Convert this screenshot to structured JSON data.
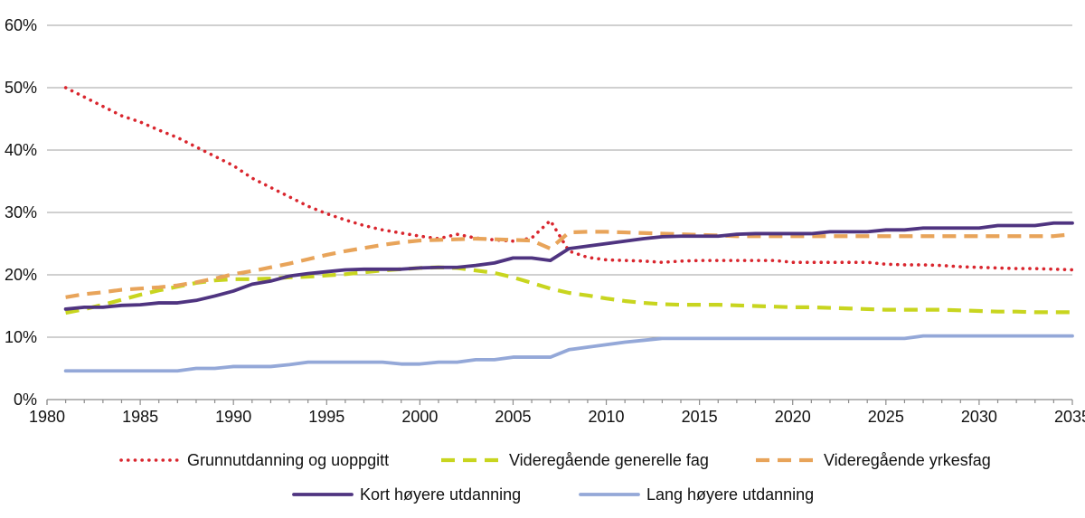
{
  "chart_data": {
    "type": "line",
    "title": "",
    "xlabel": "",
    "ylabel": "",
    "xlim": [
      1980,
      2035
    ],
    "ylim": [
      0,
      60
    ],
    "y_ticks": [
      0,
      10,
      20,
      30,
      40,
      50,
      60
    ],
    "y_tick_labels": [
      "0%",
      "10%",
      "20%",
      "30%",
      "40%",
      "50%",
      "60%"
    ],
    "x_ticks": [
      1980,
      1985,
      1990,
      1995,
      2000,
      2005,
      2010,
      2015,
      2020,
      2025,
      2030,
      2035
    ],
    "x_tick_labels": [
      "1980",
      "1985",
      "1990",
      "1995",
      "2000",
      "2005",
      "2010",
      "2015",
      "2020",
      "2025",
      "2030",
      "2035"
    ],
    "grid": true,
    "legend_position": "bottom",
    "series": [
      {
        "name": "Grunnutdanning og uoppgitt",
        "color": "#d9262e",
        "style": "dotted",
        "points": [
          [
            1981,
            50
          ],
          [
            1982,
            48.5
          ],
          [
            1983,
            47
          ],
          [
            1984,
            45.5
          ],
          [
            1985,
            44.5
          ],
          [
            1986,
            43.2
          ],
          [
            1987,
            42
          ],
          [
            1988,
            40.5
          ],
          [
            1989,
            39
          ],
          [
            1990,
            37.5
          ],
          [
            1991,
            35.5
          ],
          [
            1992,
            34
          ],
          [
            1993,
            32.5
          ],
          [
            1994,
            31
          ],
          [
            1995,
            29.8
          ],
          [
            1996,
            28.8
          ],
          [
            1997,
            27.9
          ],
          [
            1998,
            27.2
          ],
          [
            1999,
            26.7
          ],
          [
            2000,
            26.2
          ],
          [
            2001,
            25.8
          ],
          [
            2002,
            26.5
          ],
          [
            2003,
            25.9
          ],
          [
            2004,
            25.6
          ],
          [
            2005,
            25.4
          ],
          [
            2006,
            25.9
          ],
          [
            2007,
            28.7
          ],
          [
            2008,
            23.8
          ],
          [
            2009,
            22.8
          ],
          [
            2010,
            22.4
          ],
          [
            2011,
            22.3
          ],
          [
            2012,
            22.2
          ],
          [
            2013,
            22
          ],
          [
            2014,
            22.2
          ],
          [
            2015,
            22.3
          ],
          [
            2016,
            22.3
          ],
          [
            2017,
            22.3
          ],
          [
            2018,
            22.3
          ],
          [
            2019,
            22.3
          ],
          [
            2020,
            22
          ],
          [
            2021,
            22
          ],
          [
            2022,
            22
          ],
          [
            2023,
            22
          ],
          [
            2024,
            22
          ],
          [
            2025,
            21.7
          ],
          [
            2026,
            21.6
          ],
          [
            2027,
            21.6
          ],
          [
            2028,
            21.5
          ],
          [
            2029,
            21.3
          ],
          [
            2030,
            21.2
          ],
          [
            2031,
            21.1
          ],
          [
            2032,
            21
          ],
          [
            2033,
            21
          ],
          [
            2034,
            20.9
          ],
          [
            2035,
            20.8
          ]
        ]
      },
      {
        "name": "Videregående generelle fag",
        "color": "#c8d51f",
        "style": "dashed",
        "points": [
          [
            1981,
            13.9
          ],
          [
            1982,
            14.5
          ],
          [
            1983,
            15.2
          ],
          [
            1984,
            16
          ],
          [
            1985,
            16.8
          ],
          [
            1986,
            17.5
          ],
          [
            1987,
            18.1
          ],
          [
            1988,
            18.7
          ],
          [
            1989,
            19.1
          ],
          [
            1990,
            19.3
          ],
          [
            1991,
            19.3
          ],
          [
            1992,
            19.4
          ],
          [
            1993,
            19.6
          ],
          [
            1994,
            19.7
          ],
          [
            1995,
            19.9
          ],
          [
            1996,
            20.1
          ],
          [
            1997,
            20.4
          ],
          [
            1998,
            20.7
          ],
          [
            1999,
            20.9
          ],
          [
            2000,
            21.1
          ],
          [
            2001,
            21.2
          ],
          [
            2002,
            21.1
          ],
          [
            2003,
            20.7
          ],
          [
            2004,
            20.3
          ],
          [
            2005,
            19.6
          ],
          [
            2006,
            18.7
          ],
          [
            2007,
            17.8
          ],
          [
            2008,
            17.1
          ],
          [
            2009,
            16.7
          ],
          [
            2010,
            16.2
          ],
          [
            2011,
            15.8
          ],
          [
            2012,
            15.5
          ],
          [
            2013,
            15.3
          ],
          [
            2014,
            15.2
          ],
          [
            2015,
            15.2
          ],
          [
            2016,
            15.2
          ],
          [
            2017,
            15.1
          ],
          [
            2018,
            15
          ],
          [
            2019,
            14.9
          ],
          [
            2020,
            14.8
          ],
          [
            2021,
            14.8
          ],
          [
            2022,
            14.7
          ],
          [
            2023,
            14.6
          ],
          [
            2024,
            14.5
          ],
          [
            2025,
            14.4
          ],
          [
            2026,
            14.4
          ],
          [
            2027,
            14.4
          ],
          [
            2028,
            14.4
          ],
          [
            2029,
            14.3
          ],
          [
            2030,
            14.2
          ],
          [
            2031,
            14.1
          ],
          [
            2032,
            14.1
          ],
          [
            2033,
            14
          ],
          [
            2034,
            14
          ],
          [
            2035,
            14
          ]
        ]
      },
      {
        "name": "Videregående yrkesfag",
        "color": "#e8a45a",
        "style": "dashed",
        "points": [
          [
            1981,
            16.4
          ],
          [
            1982,
            16.9
          ],
          [
            1983,
            17.2
          ],
          [
            1984,
            17.6
          ],
          [
            1985,
            17.8
          ],
          [
            1986,
            18
          ],
          [
            1987,
            18.3
          ],
          [
            1988,
            18.8
          ],
          [
            1989,
            19.4
          ],
          [
            1990,
            20.1
          ],
          [
            1991,
            20.6
          ],
          [
            1992,
            21.2
          ],
          [
            1993,
            21.8
          ],
          [
            1994,
            22.5
          ],
          [
            1995,
            23.2
          ],
          [
            1996,
            23.8
          ],
          [
            1997,
            24.3
          ],
          [
            1998,
            24.8
          ],
          [
            1999,
            25.2
          ],
          [
            2000,
            25.5
          ],
          [
            2001,
            25.6
          ],
          [
            2002,
            25.7
          ],
          [
            2003,
            25.8
          ],
          [
            2004,
            25.7
          ],
          [
            2005,
            25.6
          ],
          [
            2006,
            25.5
          ],
          [
            2007,
            24.2
          ],
          [
            2008,
            26.8
          ],
          [
            2009,
            26.9
          ],
          [
            2010,
            26.9
          ],
          [
            2011,
            26.8
          ],
          [
            2012,
            26.7
          ],
          [
            2013,
            26.6
          ],
          [
            2014,
            26.5
          ],
          [
            2015,
            26.4
          ],
          [
            2016,
            26.3
          ],
          [
            2017,
            26.2
          ],
          [
            2018,
            26.2
          ],
          [
            2019,
            26.2
          ],
          [
            2020,
            26.2
          ],
          [
            2021,
            26.2
          ],
          [
            2022,
            26.2
          ],
          [
            2023,
            26.2
          ],
          [
            2024,
            26.2
          ],
          [
            2025,
            26.2
          ],
          [
            2026,
            26.2
          ],
          [
            2027,
            26.2
          ],
          [
            2028,
            26.2
          ],
          [
            2029,
            26.2
          ],
          [
            2030,
            26.2
          ],
          [
            2031,
            26.2
          ],
          [
            2032,
            26.2
          ],
          [
            2033,
            26.2
          ],
          [
            2034,
            26.2
          ],
          [
            2035,
            26.5
          ]
        ]
      },
      {
        "name": "Kort høyere utdanning",
        "color": "#4f3480",
        "style": "solid",
        "points": [
          [
            1981,
            14.5
          ],
          [
            1982,
            14.8
          ],
          [
            1983,
            14.8
          ],
          [
            1984,
            15.1
          ],
          [
            1985,
            15.2
          ],
          [
            1986,
            15.5
          ],
          [
            1987,
            15.5
          ],
          [
            1988,
            15.9
          ],
          [
            1989,
            16.6
          ],
          [
            1990,
            17.4
          ],
          [
            1991,
            18.5
          ],
          [
            1992,
            19
          ],
          [
            1993,
            19.8
          ],
          [
            1994,
            20.2
          ],
          [
            1995,
            20.5
          ],
          [
            1996,
            20.8
          ],
          [
            1997,
            20.9
          ],
          [
            1998,
            20.9
          ],
          [
            1999,
            20.9
          ],
          [
            2000,
            21.1
          ],
          [
            2001,
            21.2
          ],
          [
            2002,
            21.2
          ],
          [
            2003,
            21.5
          ],
          [
            2004,
            21.9
          ],
          [
            2005,
            22.7
          ],
          [
            2006,
            22.7
          ],
          [
            2007,
            22.3
          ],
          [
            2008,
            24.2
          ],
          [
            2009,
            24.6
          ],
          [
            2010,
            25
          ],
          [
            2011,
            25.4
          ],
          [
            2012,
            25.8
          ],
          [
            2013,
            26.1
          ],
          [
            2014,
            26.2
          ],
          [
            2015,
            26.2
          ],
          [
            2016,
            26.2
          ],
          [
            2017,
            26.5
          ],
          [
            2018,
            26.6
          ],
          [
            2019,
            26.6
          ],
          [
            2020,
            26.6
          ],
          [
            2021,
            26.6
          ],
          [
            2022,
            26.9
          ],
          [
            2023,
            26.9
          ],
          [
            2024,
            26.9
          ],
          [
            2025,
            27.2
          ],
          [
            2026,
            27.2
          ],
          [
            2027,
            27.5
          ],
          [
            2028,
            27.5
          ],
          [
            2029,
            27.5
          ],
          [
            2030,
            27.5
          ],
          [
            2031,
            27.9
          ],
          [
            2032,
            27.9
          ],
          [
            2033,
            27.9
          ],
          [
            2034,
            28.3
          ],
          [
            2035,
            28.3
          ]
        ]
      },
      {
        "name": "Lang høyere utdanning",
        "color": "#94a8d8",
        "style": "solid",
        "points": [
          [
            1981,
            4.6
          ],
          [
            1982,
            4.6
          ],
          [
            1983,
            4.6
          ],
          [
            1984,
            4.6
          ],
          [
            1985,
            4.6
          ],
          [
            1986,
            4.6
          ],
          [
            1987,
            4.6
          ],
          [
            1988,
            5
          ],
          [
            1989,
            5
          ],
          [
            1990,
            5.3
          ],
          [
            1991,
            5.3
          ],
          [
            1992,
            5.3
          ],
          [
            1993,
            5.6
          ],
          [
            1994,
            6
          ],
          [
            1995,
            6
          ],
          [
            1996,
            6
          ],
          [
            1997,
            6
          ],
          [
            1998,
            6
          ],
          [
            1999,
            5.7
          ],
          [
            2000,
            5.7
          ],
          [
            2001,
            6
          ],
          [
            2002,
            6
          ],
          [
            2003,
            6.4
          ],
          [
            2004,
            6.4
          ],
          [
            2005,
            6.8
          ],
          [
            2006,
            6.8
          ],
          [
            2007,
            6.8
          ],
          [
            2008,
            8
          ],
          [
            2009,
            8.4
          ],
          [
            2010,
            8.8
          ],
          [
            2011,
            9.2
          ],
          [
            2012,
            9.5
          ],
          [
            2013,
            9.8
          ],
          [
            2014,
            9.8
          ],
          [
            2015,
            9.8
          ],
          [
            2016,
            9.8
          ],
          [
            2017,
            9.8
          ],
          [
            2018,
            9.8
          ],
          [
            2019,
            9.8
          ],
          [
            2020,
            9.8
          ],
          [
            2021,
            9.8
          ],
          [
            2022,
            9.8
          ],
          [
            2023,
            9.8
          ],
          [
            2024,
            9.8
          ],
          [
            2025,
            9.8
          ],
          [
            2026,
            9.8
          ],
          [
            2027,
            10.2
          ],
          [
            2028,
            10.2
          ],
          [
            2029,
            10.2
          ],
          [
            2030,
            10.2
          ],
          [
            2031,
            10.2
          ],
          [
            2032,
            10.2
          ],
          [
            2033,
            10.2
          ],
          [
            2034,
            10.2
          ],
          [
            2035,
            10.2
          ]
        ]
      }
    ]
  }
}
